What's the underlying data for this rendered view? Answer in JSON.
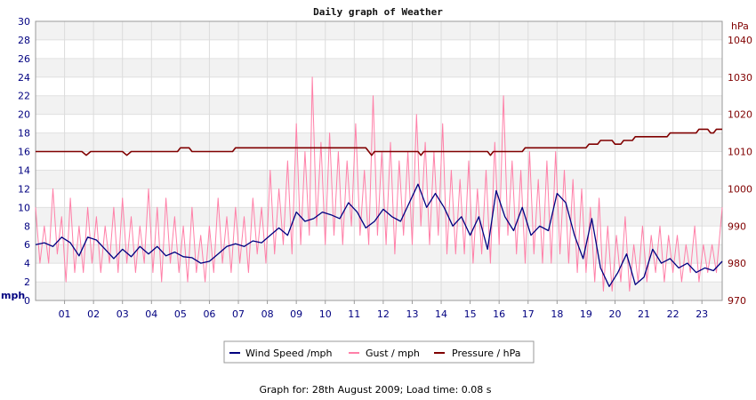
{
  "chart_data": {
    "type": "line",
    "title": "Daily graph of Weather",
    "footer": "Graph for: 28th August 2009; Load time: 0.08 s",
    "x": {
      "label": "",
      "range_hours": [
        0,
        23.7
      ],
      "tick_labels": [
        "01",
        "02",
        "03",
        "04",
        "05",
        "06",
        "07",
        "08",
        "09",
        "10",
        "11",
        "12",
        "13",
        "14",
        "15",
        "16",
        "17",
        "18",
        "19",
        "20",
        "21",
        "22",
        "23"
      ]
    },
    "y_left": {
      "unit_label": "mph",
      "range": [
        0,
        30
      ],
      "ticks": [
        0,
        2,
        4,
        6,
        8,
        10,
        12,
        14,
        16,
        18,
        20,
        22,
        24,
        26,
        28,
        30
      ],
      "color": "#000080"
    },
    "y_right": {
      "unit_label": "hPa",
      "range": [
        970,
        1045
      ],
      "ticks": [
        970,
        980,
        990,
        1000,
        1010,
        1020,
        1030,
        1040
      ],
      "color": "#800000"
    },
    "grid": true,
    "legend_position": "bottom",
    "series": [
      {
        "name": "Wind Speed /mph",
        "axis": "left",
        "color": "#000080",
        "points": [
          [
            0,
            6
          ],
          [
            0.3,
            6.2
          ],
          [
            0.6,
            5.8
          ],
          [
            0.9,
            6.8
          ],
          [
            1.2,
            6.2
          ],
          [
            1.5,
            4.8
          ],
          [
            1.8,
            6.8
          ],
          [
            2.1,
            6.5
          ],
          [
            2.4,
            5.5
          ],
          [
            2.7,
            4.5
          ],
          [
            3.0,
            5.5
          ],
          [
            3.3,
            4.7
          ],
          [
            3.6,
            5.8
          ],
          [
            3.9,
            5.0
          ],
          [
            4.2,
            5.8
          ],
          [
            4.5,
            4.8
          ],
          [
            4.8,
            5.2
          ],
          [
            5.1,
            4.7
          ],
          [
            5.4,
            4.6
          ],
          [
            5.7,
            4.0
          ],
          [
            6.0,
            4.2
          ],
          [
            6.3,
            5.0
          ],
          [
            6.6,
            5.8
          ],
          [
            6.9,
            6.1
          ],
          [
            7.2,
            5.8
          ],
          [
            7.5,
            6.4
          ],
          [
            7.8,
            6.2
          ],
          [
            8.1,
            7.0
          ],
          [
            8.4,
            7.8
          ],
          [
            8.7,
            7.0
          ],
          [
            9.0,
            9.5
          ],
          [
            9.3,
            8.5
          ],
          [
            9.6,
            8.8
          ],
          [
            9.9,
            9.5
          ],
          [
            10.2,
            9.2
          ],
          [
            10.5,
            8.8
          ],
          [
            10.8,
            10.5
          ],
          [
            11.1,
            9.5
          ],
          [
            11.4,
            7.8
          ],
          [
            11.7,
            8.5
          ],
          [
            12.0,
            9.8
          ],
          [
            12.3,
            9.0
          ],
          [
            12.6,
            8.5
          ],
          [
            12.9,
            10.5
          ],
          [
            13.2,
            12.5
          ],
          [
            13.5,
            10.0
          ],
          [
            13.8,
            11.5
          ],
          [
            14.1,
            10.0
          ],
          [
            14.4,
            8.0
          ],
          [
            14.7,
            9.0
          ],
          [
            15.0,
            7.0
          ],
          [
            15.3,
            9.0
          ],
          [
            15.6,
            5.5
          ],
          [
            15.9,
            11.8
          ],
          [
            16.2,
            9.0
          ],
          [
            16.5,
            7.5
          ],
          [
            16.8,
            10.0
          ],
          [
            17.1,
            7.0
          ],
          [
            17.4,
            8.0
          ],
          [
            17.7,
            7.5
          ],
          [
            18.0,
            11.5
          ],
          [
            18.3,
            10.5
          ],
          [
            18.6,
            7.0
          ],
          [
            18.9,
            4.5
          ],
          [
            19.2,
            8.8
          ],
          [
            19.5,
            3.5
          ],
          [
            19.8,
            1.5
          ],
          [
            20.1,
            3.0
          ],
          [
            20.4,
            5.0
          ],
          [
            20.7,
            1.7
          ],
          [
            21.0,
            2.5
          ],
          [
            21.3,
            5.5
          ],
          [
            21.6,
            4.0
          ],
          [
            21.9,
            4.5
          ],
          [
            22.2,
            3.5
          ],
          [
            22.5,
            4.0
          ],
          [
            22.8,
            3.0
          ],
          [
            23.1,
            3.5
          ],
          [
            23.4,
            3.2
          ],
          [
            23.7,
            4.2
          ]
        ]
      },
      {
        "name": "Gust / mph",
        "axis": "left",
        "color": "#FF80A8",
        "points": [
          [
            0,
            10
          ],
          [
            0.15,
            4
          ],
          [
            0.3,
            8
          ],
          [
            0.45,
            4
          ],
          [
            0.6,
            12
          ],
          [
            0.75,
            5
          ],
          [
            0.9,
            9
          ],
          [
            1.05,
            2
          ],
          [
            1.2,
            11
          ],
          [
            1.35,
            3
          ],
          [
            1.5,
            8
          ],
          [
            1.65,
            3
          ],
          [
            1.8,
            10
          ],
          [
            1.95,
            4
          ],
          [
            2.1,
            9
          ],
          [
            2.25,
            3
          ],
          [
            2.4,
            8
          ],
          [
            2.55,
            4
          ],
          [
            2.7,
            10
          ],
          [
            2.85,
            3
          ],
          [
            3.0,
            11
          ],
          [
            3.15,
            4
          ],
          [
            3.3,
            9
          ],
          [
            3.45,
            3
          ],
          [
            3.6,
            8
          ],
          [
            3.75,
            4
          ],
          [
            3.9,
            12
          ],
          [
            4.05,
            3
          ],
          [
            4.2,
            10
          ],
          [
            4.35,
            2
          ],
          [
            4.5,
            11
          ],
          [
            4.65,
            4
          ],
          [
            4.8,
            9
          ],
          [
            4.95,
            3
          ],
          [
            5.1,
            8
          ],
          [
            5.25,
            2
          ],
          [
            5.4,
            10
          ],
          [
            5.55,
            3
          ],
          [
            5.7,
            7
          ],
          [
            5.85,
            2
          ],
          [
            6.0,
            8
          ],
          [
            6.15,
            3
          ],
          [
            6.3,
            11
          ],
          [
            6.45,
            4
          ],
          [
            6.6,
            9
          ],
          [
            6.75,
            3
          ],
          [
            6.9,
            10
          ],
          [
            7.05,
            4
          ],
          [
            7.2,
            9
          ],
          [
            7.35,
            3
          ],
          [
            7.5,
            11
          ],
          [
            7.65,
            5
          ],
          [
            7.8,
            10
          ],
          [
            7.95,
            4
          ],
          [
            8.1,
            14
          ],
          [
            8.25,
            5
          ],
          [
            8.4,
            12
          ],
          [
            8.55,
            6
          ],
          [
            8.7,
            15
          ],
          [
            8.85,
            5
          ],
          [
            9.0,
            19
          ],
          [
            9.15,
            6
          ],
          [
            9.3,
            16
          ],
          [
            9.45,
            7
          ],
          [
            9.55,
            24
          ],
          [
            9.7,
            8
          ],
          [
            9.85,
            17
          ],
          [
            10.0,
            6
          ],
          [
            10.15,
            18
          ],
          [
            10.3,
            7
          ],
          [
            10.45,
            16
          ],
          [
            10.6,
            6
          ],
          [
            10.75,
            15
          ],
          [
            10.9,
            8
          ],
          [
            11.05,
            19
          ],
          [
            11.2,
            7
          ],
          [
            11.35,
            14
          ],
          [
            11.5,
            6
          ],
          [
            11.65,
            22
          ],
          [
            11.8,
            7
          ],
          [
            11.95,
            16
          ],
          [
            12.1,
            6
          ],
          [
            12.25,
            17
          ],
          [
            12.4,
            5
          ],
          [
            12.55,
            15
          ],
          [
            12.7,
            7
          ],
          [
            12.85,
            16
          ],
          [
            13.0,
            6
          ],
          [
            13.15,
            20
          ],
          [
            13.3,
            8
          ],
          [
            13.45,
            17
          ],
          [
            13.6,
            6
          ],
          [
            13.75,
            16
          ],
          [
            13.9,
            7
          ],
          [
            14.05,
            19
          ],
          [
            14.2,
            5
          ],
          [
            14.35,
            14
          ],
          [
            14.5,
            5
          ],
          [
            14.65,
            13
          ],
          [
            14.8,
            5
          ],
          [
            14.95,
            15
          ],
          [
            15.1,
            4
          ],
          [
            15.25,
            12
          ],
          [
            15.4,
            5
          ],
          [
            15.55,
            14
          ],
          [
            15.7,
            4
          ],
          [
            15.85,
            17
          ],
          [
            16.0,
            6
          ],
          [
            16.15,
            22
          ],
          [
            16.3,
            7
          ],
          [
            16.45,
            15
          ],
          [
            16.6,
            5
          ],
          [
            16.75,
            14
          ],
          [
            16.9,
            4
          ],
          [
            17.05,
            16
          ],
          [
            17.2,
            5
          ],
          [
            17.35,
            13
          ],
          [
            17.5,
            4
          ],
          [
            17.65,
            15
          ],
          [
            17.8,
            4
          ],
          [
            17.95,
            16
          ],
          [
            18.1,
            5
          ],
          [
            18.25,
            14
          ],
          [
            18.4,
            4
          ],
          [
            18.55,
            13
          ],
          [
            18.7,
            3
          ],
          [
            18.85,
            12
          ],
          [
            19.0,
            3
          ],
          [
            19.15,
            10
          ],
          [
            19.3,
            2
          ],
          [
            19.45,
            11
          ],
          [
            19.6,
            1
          ],
          [
            19.75,
            8
          ],
          [
            19.9,
            1
          ],
          [
            20.05,
            7
          ],
          [
            20.2,
            2
          ],
          [
            20.35,
            9
          ],
          [
            20.5,
            1
          ],
          [
            20.65,
            6
          ],
          [
            20.8,
            2
          ],
          [
            20.95,
            8
          ],
          [
            21.1,
            2
          ],
          [
            21.25,
            7
          ],
          [
            21.4,
            3
          ],
          [
            21.55,
            8
          ],
          [
            21.7,
            2
          ],
          [
            21.85,
            7
          ],
          [
            22.0,
            3
          ],
          [
            22.15,
            7
          ],
          [
            22.3,
            2
          ],
          [
            22.45,
            6
          ],
          [
            22.6,
            3
          ],
          [
            22.75,
            8
          ],
          [
            22.9,
            2
          ],
          [
            23.05,
            6
          ],
          [
            23.2,
            3
          ],
          [
            23.35,
            6
          ],
          [
            23.5,
            3
          ],
          [
            23.7,
            10
          ]
        ]
      },
      {
        "name": "Pressure / hPa",
        "axis": "right",
        "color": "#800000",
        "points": [
          [
            0,
            1010
          ],
          [
            1.6,
            1010
          ],
          [
            1.75,
            1009
          ],
          [
            1.9,
            1010
          ],
          [
            3.0,
            1010
          ],
          [
            3.15,
            1009
          ],
          [
            3.3,
            1010
          ],
          [
            4.9,
            1010
          ],
          [
            5.0,
            1011
          ],
          [
            5.3,
            1011
          ],
          [
            5.4,
            1010
          ],
          [
            6.8,
            1010
          ],
          [
            6.9,
            1011
          ],
          [
            11.4,
            1011
          ],
          [
            11.5,
            1010
          ],
          [
            11.6,
            1009
          ],
          [
            11.7,
            1010
          ],
          [
            13.2,
            1010
          ],
          [
            13.3,
            1009
          ],
          [
            13.4,
            1010
          ],
          [
            15.6,
            1010
          ],
          [
            15.7,
            1009
          ],
          [
            15.8,
            1010
          ],
          [
            16.8,
            1010
          ],
          [
            16.9,
            1011
          ],
          [
            19.0,
            1011
          ],
          [
            19.1,
            1012
          ],
          [
            19.4,
            1012
          ],
          [
            19.5,
            1013
          ],
          [
            19.9,
            1013
          ],
          [
            20.0,
            1012
          ],
          [
            20.2,
            1012
          ],
          [
            20.3,
            1013
          ],
          [
            20.6,
            1013
          ],
          [
            20.7,
            1014
          ],
          [
            21.8,
            1014
          ],
          [
            21.9,
            1015
          ],
          [
            22.8,
            1015
          ],
          [
            22.9,
            1016
          ],
          [
            23.2,
            1016
          ],
          [
            23.3,
            1015
          ],
          [
            23.4,
            1015
          ],
          [
            23.5,
            1016
          ],
          [
            23.7,
            1016
          ]
        ]
      }
    ]
  }
}
